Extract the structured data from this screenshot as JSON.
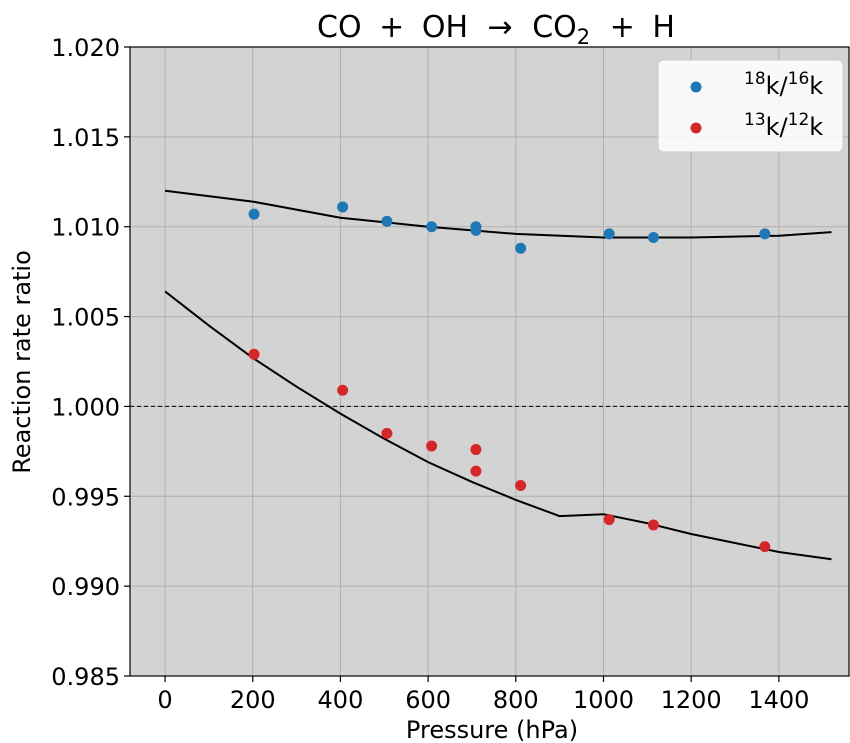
{
  "chart_data": {
    "type": "scatter",
    "title": {
      "lhs1": "CO",
      "plus1": "+",
      "lhs2": "OH",
      "arrow": "→",
      "rhs1": "CO",
      "rhs1_sub": "2",
      "plus2": "+",
      "rhs2": "H"
    },
    "xlabel": "Pressure (hPa)",
    "ylabel": "Reaction rate ratio",
    "xlim": [
      -80,
      1560
    ],
    "ylim": [
      0.985,
      1.02
    ],
    "xticks": [
      0,
      200,
      400,
      600,
      800,
      1000,
      1200,
      1400
    ],
    "xtick_labels": [
      "0",
      "200",
      "400",
      "600",
      "800",
      "1000",
      "1200",
      "1400"
    ],
    "yticks": [
      0.985,
      0.99,
      0.995,
      1.0,
      1.005,
      1.01,
      1.015,
      1.02
    ],
    "ytick_labels": [
      "0.985",
      "0.990",
      "0.995",
      "1.000",
      "1.005",
      "1.010",
      "1.015",
      "1.020"
    ],
    "grid": true,
    "legend_position": "top-right",
    "background_color": "#d3d3d3",
    "reference_line": {
      "y": 1.0,
      "style": "dashed",
      "color": "#000000"
    },
    "series": [
      {
        "legend": {
          "sup1": "18",
          "base1": "k/",
          "sup2": "16",
          "base2": "k"
        },
        "color": "#1f77b4",
        "points": [
          {
            "x": 203,
            "y": 1.0107
          },
          {
            "x": 405,
            "y": 1.0111
          },
          {
            "x": 506,
            "y": 1.0103
          },
          {
            "x": 608,
            "y": 1.01
          },
          {
            "x": 709,
            "y": 1.01
          },
          {
            "x": 709,
            "y": 1.0098
          },
          {
            "x": 811,
            "y": 1.0088
          },
          {
            "x": 1013,
            "y": 1.0096
          },
          {
            "x": 1114,
            "y": 1.0094
          },
          {
            "x": 1368,
            "y": 1.0096
          }
        ],
        "fit_line": [
          {
            "x": 0,
            "y": 1.012
          },
          {
            "x": 200,
            "y": 1.0114
          },
          {
            "x": 400,
            "y": 1.0105
          },
          {
            "x": 600,
            "y": 1.01
          },
          {
            "x": 800,
            "y": 1.0096
          },
          {
            "x": 1000,
            "y": 1.0094
          },
          {
            "x": 1200,
            "y": 1.0094
          },
          {
            "x": 1400,
            "y": 1.0095
          },
          {
            "x": 1520,
            "y": 1.0097
          }
        ]
      },
      {
        "legend": {
          "sup1": "13",
          "base1": "k/",
          "sup2": "12",
          "base2": "k"
        },
        "color": "#d62728",
        "points": [
          {
            "x": 203,
            "y": 1.0029
          },
          {
            "x": 405,
            "y": 1.0009
          },
          {
            "x": 506,
            "y": 0.9985
          },
          {
            "x": 608,
            "y": 0.9978
          },
          {
            "x": 709,
            "y": 0.9976
          },
          {
            "x": 709,
            "y": 0.9964
          },
          {
            "x": 811,
            "y": 0.9956
          },
          {
            "x": 1013,
            "y": 0.9937
          },
          {
            "x": 1114,
            "y": 0.9934
          },
          {
            "x": 1368,
            "y": 0.9922
          }
        ],
        "fit_line": [
          {
            "x": 0,
            "y": 1.0064
          },
          {
            "x": 100,
            "y": 1.0045
          },
          {
            "x": 200,
            "y": 1.0027
          },
          {
            "x": 300,
            "y": 1.0011
          },
          {
            "x": 400,
            "y": 0.9996
          },
          {
            "x": 500,
            "y": 0.9982
          },
          {
            "x": 600,
            "y": 0.9969
          },
          {
            "x": 700,
            "y": 0.9958
          },
          {
            "x": 800,
            "y": 0.9948
          },
          {
            "x": 900,
            "y": 0.9939
          },
          {
            "x": 1000,
            "y": 0.994
          },
          {
            "x": 1100,
            "y": 0.9935
          },
          {
            "x": 1200,
            "y": 0.9929
          },
          {
            "x": 1300,
            "y": 0.9924
          },
          {
            "x": 1400,
            "y": 0.9919
          },
          {
            "x": 1520,
            "y": 0.9915
          }
        ]
      }
    ]
  }
}
